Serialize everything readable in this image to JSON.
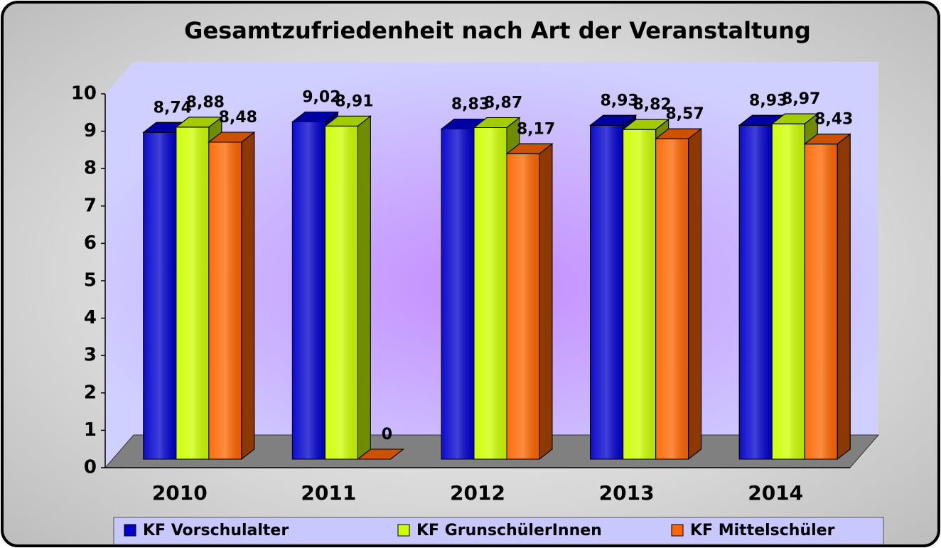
{
  "chart_data": {
    "type": "bar3d",
    "title": "Gesamtzufriedenheit nach Art der Veranstaltung",
    "categories": [
      "2010",
      "2011",
      "2012",
      "2013",
      "2014"
    ],
    "series": [
      {
        "name": "KF Vorschulalter",
        "color": "#0000cc",
        "values": [
          8.74,
          9.02,
          8.83,
          8.93,
          8.93
        ],
        "value_labels": [
          "8,74",
          "9,02",
          "8,83",
          "8,93",
          "8,93"
        ]
      },
      {
        "name": "KF GrunschülerInnen",
        "color": "#ccff00",
        "values": [
          8.88,
          8.91,
          8.87,
          8.82,
          8.97
        ],
        "value_labels": [
          "8,88",
          "8,91",
          "8,87",
          "8,82",
          "8,97"
        ]
      },
      {
        "name": "KF Mittelschüler",
        "color": "#ff6600",
        "values": [
          8.48,
          0,
          8.17,
          8.57,
          8.43
        ],
        "value_labels": [
          "8,48",
          "0",
          "8,17",
          "8,57",
          "8,43"
        ]
      }
    ],
    "ylim": [
      0,
      10
    ],
    "yticks": [
      0,
      1,
      2,
      3,
      4,
      5,
      6,
      7,
      8,
      9,
      10
    ],
    "grid": false
  }
}
